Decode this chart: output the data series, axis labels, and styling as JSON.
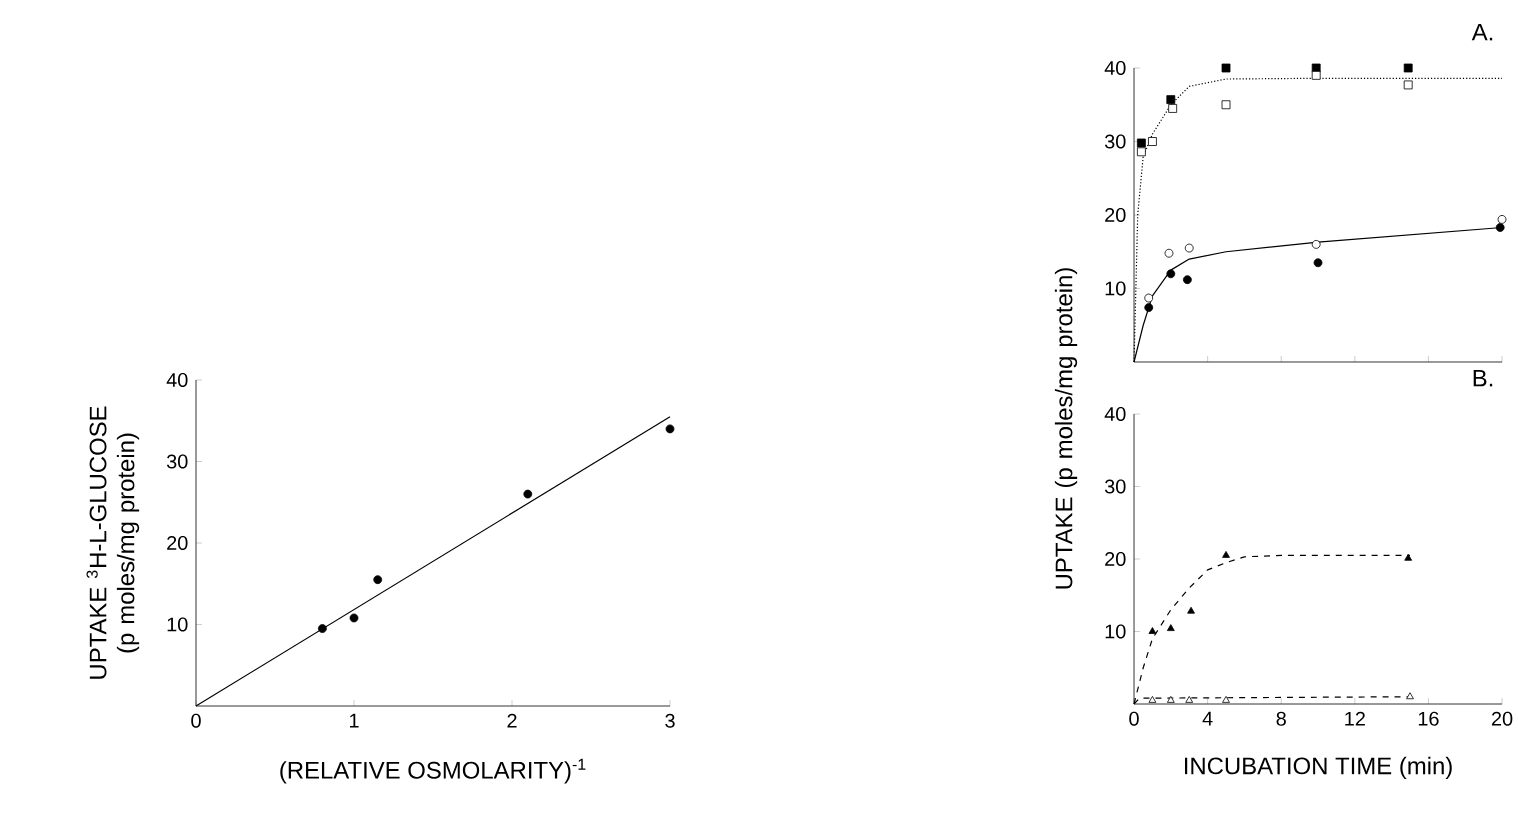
{
  "chart_data": [
    {
      "type": "scatter",
      "xlabel": "(RELATIVE OSMOLARITY)$^{-1}$",
      "ylabel": "UPTAKE $^{3}$H-L-GLUCOSE (p moles/mg protein)",
      "xlim": [
        0,
        3
      ],
      "ylim": [
        0,
        40
      ],
      "xticks": [
        0,
        1,
        2,
        3
      ],
      "yticks": [
        10,
        20,
        30,
        40
      ],
      "series": [
        {
          "type": "line",
          "color": "#000000",
          "marker": "none",
          "line_style": "solid",
          "x": [
            0,
            3
          ],
          "values": [
            0,
            35.5
          ]
        },
        {
          "color": "#000000",
          "marker": "circle",
          "x": [
            0.8,
            1.0,
            1.15,
            2.1,
            3.0
          ],
          "values": [
            9.5,
            10.8,
            15.5,
            26,
            34
          ]
        }
      ]
    },
    {
      "type": "scatter",
      "title": "A.",
      "xlim": [
        0,
        20
      ],
      "ylim": [
        0,
        40
      ],
      "xticks": [
        0,
        4,
        8,
        12,
        16,
        20
      ],
      "yticks": [
        10,
        20,
        30,
        40
      ],
      "tick_labels": "y",
      "series": [
        {
          "type": "line",
          "color": "#000000",
          "marker": "none",
          "line_style": "dotted",
          "x": [
            0,
            0.2,
            0.5,
            1,
            2,
            3,
            5,
            10,
            15,
            20
          ],
          "values": [
            0,
            20,
            28,
            31,
            35,
            37.5,
            38.5,
            38.6,
            38.6,
            38.6
          ]
        },
        {
          "type": "line",
          "color": "#000000",
          "marker": "none",
          "line_style": "solid",
          "x": [
            0,
            0.5,
            1,
            2,
            3,
            5,
            10,
            15,
            20
          ],
          "values": [
            0,
            5,
            9,
            12.5,
            14,
            15,
            16.3,
            17.3,
            18.3
          ]
        },
        {
          "color": "#000000",
          "marker": "square",
          "x": [
            0.4,
            2.0,
            5.0,
            9.9,
            14.9
          ],
          "values": [
            29.8,
            35.7,
            40,
            40,
            40
          ]
        },
        {
          "color": "#ffffff",
          "marker": "square",
          "x": [
            0.4,
            1.0,
            2.1,
            5.0,
            9.9,
            14.9
          ],
          "values": [
            28.6,
            30,
            34.5,
            35,
            39,
            37.7
          ]
        },
        {
          "color": "#000000",
          "marker": "circle",
          "x": [
            0.8,
            2.0,
            2.9,
            10,
            19.9
          ],
          "values": [
            7.4,
            12,
            11.2,
            13.5,
            18.3
          ]
        },
        {
          "color": "#ffffff",
          "marker": "circle",
          "x": [
            0.8,
            1.9,
            3.0,
            9.9,
            20
          ],
          "values": [
            8.7,
            14.8,
            15.5,
            16,
            19.4
          ]
        }
      ]
    },
    {
      "type": "scatter",
      "title": "B.",
      "xlabel": "INCUBATION TIME (min)",
      "ylabel": "UPTAKE (p moles/mg protein)",
      "xlim": [
        0,
        20
      ],
      "ylim": [
        0,
        40
      ],
      "xticks": [
        0,
        4,
        8,
        12,
        16,
        20
      ],
      "yticks": [
        10,
        20,
        30,
        40
      ],
      "series": [
        {
          "type": "line",
          "color": "#000000",
          "marker": "none",
          "line_style": "dashed",
          "x": [
            0,
            0.5,
            1,
            2,
            3,
            4,
            5,
            6,
            8,
            15
          ],
          "values": [
            0,
            5,
            9,
            13,
            16,
            18.5,
            19.5,
            20.3,
            20.5,
            20.5
          ]
        },
        {
          "type": "line",
          "color": "#000000",
          "marker": "none",
          "line_style": "dashed",
          "x": [
            0,
            0.3,
            15
          ],
          "values": [
            0,
            0.8,
            1
          ]
        },
        {
          "color": "#000000",
          "marker": "triangle",
          "x": [
            1.0,
            2.0,
            3.1,
            5.0,
            14.9
          ],
          "values": [
            10,
            10.4,
            12.8,
            20.5,
            20.1
          ]
        },
        {
          "color": "#ffffff",
          "marker": "triangle",
          "x": [
            1,
            2,
            3,
            5,
            15
          ],
          "values": [
            0.5,
            0.5,
            0.5,
            0.5,
            1
          ]
        }
      ]
    }
  ]
}
